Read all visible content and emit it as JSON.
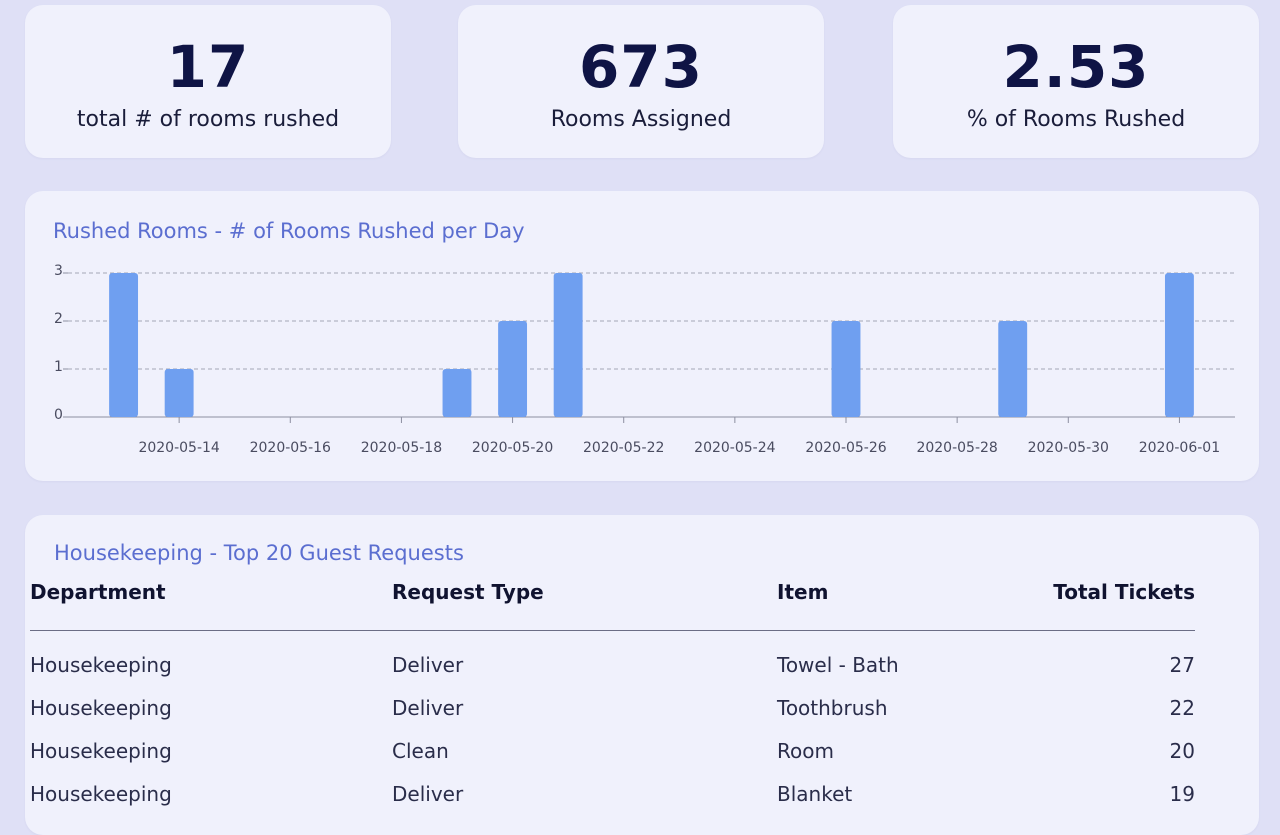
{
  "kpis": [
    {
      "value": "17",
      "label": "total # of rooms rushed"
    },
    {
      "value": "673",
      "label": "Rooms Assigned"
    },
    {
      "value": "2.53",
      "label": "% of Rooms Rushed"
    }
  ],
  "chart": {
    "title": "Rushed Rooms - # of Rooms Rushed per Day"
  },
  "chart_data": {
    "type": "bar",
    "title": "Rushed Rooms - # of Rooms Rushed per Day",
    "xlabel": "",
    "ylabel": "",
    "x": [
      "2020-05-13",
      "2020-05-14",
      "2020-05-19",
      "2020-05-20",
      "2020-05-21",
      "2020-05-26",
      "2020-05-29",
      "2020-06-01"
    ],
    "values": [
      3,
      1,
      1,
      2,
      3,
      2,
      2,
      3
    ],
    "xlim": [
      "2020-05-12",
      "2020-06-02"
    ],
    "ylim": [
      0,
      3
    ],
    "yticks": [
      "0",
      "1",
      "2",
      "3"
    ],
    "xticks": [
      "2020-05-14",
      "2020-05-16",
      "2020-05-18",
      "2020-05-20",
      "2020-05-22",
      "2020-05-24",
      "2020-05-26",
      "2020-05-28",
      "2020-05-30",
      "2020-06-01"
    ],
    "grid": "horizontal dashed",
    "bar_color": "#6f9ff0"
  },
  "table": {
    "title": "Housekeeping - Top 20 Guest Requests",
    "headers": [
      "Department",
      "Request Type",
      "Item",
      "Total Tickets"
    ],
    "rows": [
      [
        "Housekeeping",
        "Deliver",
        "Towel - Bath",
        "27"
      ],
      [
        "Housekeeping",
        "Deliver",
        "Toothbrush",
        "22"
      ],
      [
        "Housekeeping",
        "Clean",
        "Room",
        "20"
      ],
      [
        "Housekeeping",
        "Deliver",
        "Blanket",
        "19"
      ]
    ]
  },
  "colors": {
    "background": "#dfe0f6",
    "card": "#f0f1fc",
    "accent": "#5b6ed0",
    "kpi_text": "#0f1445"
  }
}
